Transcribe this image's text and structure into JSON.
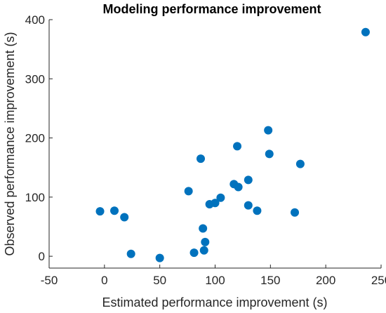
{
  "chart_data": {
    "type": "scatter",
    "title": "Modeling performance improvement",
    "xlabel": "Estimated performance improvement (s)",
    "ylabel": "Observed performance improvement (s)",
    "xlim": [
      -50,
      250
    ],
    "ylim": [
      -20,
      400
    ],
    "xticks": [
      -50,
      0,
      50,
      100,
      150,
      200,
      250
    ],
    "yticks": [
      0,
      100,
      200,
      300,
      400
    ],
    "grid": false,
    "legend": "none",
    "marker_color": "#0072BD",
    "points": [
      {
        "x": -4,
        "y": 76
      },
      {
        "x": 9,
        "y": 77
      },
      {
        "x": 18,
        "y": 66
      },
      {
        "x": 24,
        "y": 4
      },
      {
        "x": 50,
        "y": -3
      },
      {
        "x": 76,
        "y": 110
      },
      {
        "x": 81,
        "y": 6
      },
      {
        "x": 87,
        "y": 165
      },
      {
        "x": 89,
        "y": 47
      },
      {
        "x": 90,
        "y": 10
      },
      {
        "x": 91,
        "y": 24
      },
      {
        "x": 95,
        "y": 88
      },
      {
        "x": 100,
        "y": 90
      },
      {
        "x": 105,
        "y": 99
      },
      {
        "x": 117,
        "y": 122
      },
      {
        "x": 120,
        "y": 186
      },
      {
        "x": 121,
        "y": 117
      },
      {
        "x": 130,
        "y": 129
      },
      {
        "x": 130,
        "y": 86
      },
      {
        "x": 138,
        "y": 77
      },
      {
        "x": 148,
        "y": 213
      },
      {
        "x": 149,
        "y": 173
      },
      {
        "x": 172,
        "y": 74
      },
      {
        "x": 177,
        "y": 156
      },
      {
        "x": 236,
        "y": 379
      }
    ]
  }
}
